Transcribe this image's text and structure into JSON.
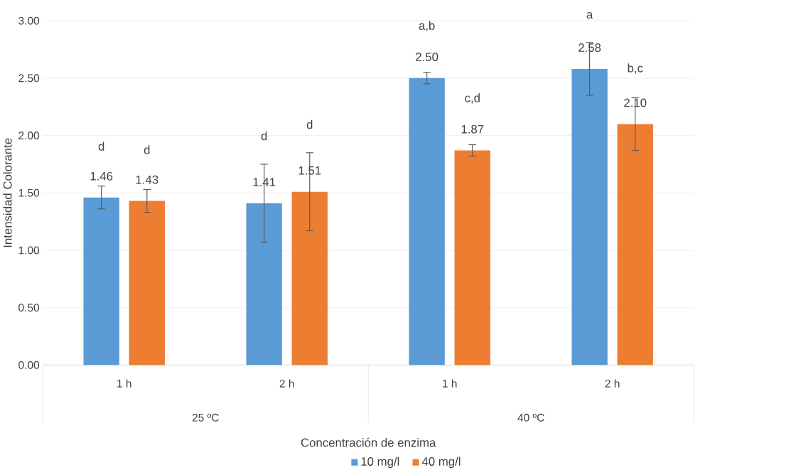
{
  "chart_data": {
    "type": "bar",
    "xlabel": "Concentración de enzima",
    "ylabel": "Intensidad Colorante",
    "categories": [
      "1 h",
      "2 h",
      "1 h",
      "2 h"
    ],
    "series": [
      {
        "name": "10 mg/l",
        "color": "#5b9bd5",
        "values": [
          1.46,
          1.41,
          2.5,
          2.58
        ],
        "value_labels": [
          "1.46",
          "1.41",
          "2.50",
          "2.58"
        ],
        "errors": [
          0.1,
          0.34,
          0.05,
          0.23
        ]
      },
      {
        "name": "40 mg/l",
        "color": "#ed7d31",
        "values": [
          1.43,
          1.51,
          1.87,
          2.1
        ],
        "value_labels": [
          "1.43",
          "1.51",
          "1.87",
          "2.10"
        ],
        "errors": [
          0.1,
          0.34,
          0.05,
          0.23
        ]
      }
    ],
    "ylim": [
      0,
      3
    ],
    "yticks": [
      {
        "value": 0,
        "label": "0.00"
      },
      {
        "value": 0.5,
        "label": "0.50"
      },
      {
        "value": 1,
        "label": "1.00"
      },
      {
        "value": 1.5,
        "label": "1.50"
      },
      {
        "value": 2,
        "label": "2.00"
      },
      {
        "value": 2.5,
        "label": "2.50"
      },
      {
        "value": 3,
        "label": "3.00"
      }
    ],
    "grid": "y",
    "legend": "bottom",
    "annotations": [
      "d",
      "d",
      "d",
      "d",
      "a,b",
      "c,d",
      "a",
      "b,c",
      "25 ºC",
      "40 ºC"
    ]
  }
}
